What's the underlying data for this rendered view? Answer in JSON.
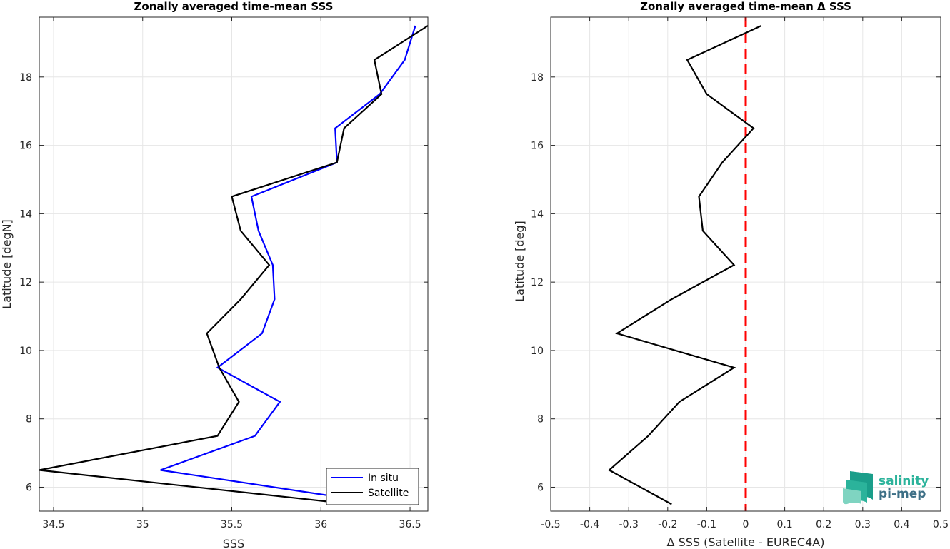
{
  "chart_data": [
    {
      "type": "line",
      "title": "Zonally averaged time-mean SSS",
      "xlabel": "SSS",
      "ylabel": "Latitude [degN]",
      "xlim": [
        34.42,
        36.6
      ],
      "ylim": [
        5.3,
        19.75
      ],
      "xticks": [
        34.5,
        35,
        35.5,
        36,
        36.5
      ],
      "xtick_labels": [
        "34.5",
        "35",
        "35.5",
        "36",
        "36.5"
      ],
      "yticks": [
        6,
        8,
        10,
        12,
        14,
        16,
        18
      ],
      "ytick_labels": [
        "6",
        "8",
        "10",
        "12",
        "14",
        "16",
        "18"
      ],
      "grid": true,
      "legend": "bottom-right",
      "series": [
        {
          "name": "In situ",
          "color": "#0000ff",
          "x": [
            36.37,
            35.1,
            35.63,
            35.77,
            35.42,
            35.67,
            35.74,
            35.73,
            35.65,
            35.61,
            36.09,
            36.08,
            36.33,
            36.47,
            36.53
          ],
          "y": [
            5.5,
            6.5,
            7.5,
            8.5,
            9.5,
            10.5,
            11.5,
            12.5,
            13.5,
            14.5,
            15.5,
            16.5,
            17.5,
            18.5,
            19.5
          ]
        },
        {
          "name": "Satellite",
          "color": "#000000",
          "x": [
            36.18,
            34.42,
            35.42,
            35.54,
            35.43,
            35.36,
            35.55,
            35.71,
            35.55,
            35.5,
            36.09,
            36.13,
            36.34,
            36.3,
            36.6
          ],
          "y": [
            5.5,
            6.5,
            7.5,
            8.5,
            9.5,
            10.5,
            11.5,
            12.5,
            13.5,
            14.5,
            15.5,
            16.5,
            17.5,
            18.5,
            19.5
          ]
        }
      ]
    },
    {
      "type": "line",
      "title": "Zonally averaged time-mean Δ SSS",
      "xlabel": "Δ SSS (Satellite - EUREC4A)",
      "ylabel": "Latitude [deg]",
      "xlim": [
        -0.5,
        0.5
      ],
      "ylim": [
        5.3,
        19.75
      ],
      "xticks": [
        -0.5,
        -0.4,
        -0.3,
        -0.2,
        -0.1,
        0,
        0.1,
        0.2,
        0.3,
        0.4,
        0.5
      ],
      "xtick_labels": [
        "-0.5",
        "-0.4",
        "-0.3",
        "-0.2",
        "-0.1",
        "0",
        "0.1",
        "0.2",
        "0.3",
        "0.4",
        "0.5"
      ],
      "yticks": [
        6,
        8,
        10,
        12,
        14,
        16,
        18
      ],
      "ytick_labels": [
        "6",
        "8",
        "10",
        "12",
        "14",
        "16",
        "18"
      ],
      "grid": true,
      "reference_line": {
        "x": 0,
        "color": "#ff0000",
        "style": "dashed"
      },
      "series": [
        {
          "color": "#000000",
          "x": [
            -0.19,
            -0.35,
            -0.25,
            -0.17,
            -0.03,
            -0.33,
            -0.19,
            -0.03,
            -0.11,
            -0.12,
            -0.06,
            0.02,
            -0.1,
            -0.15,
            0.04
          ],
          "y": [
            5.5,
            6.5,
            7.5,
            8.5,
            9.5,
            10.5,
            11.5,
            12.5,
            13.5,
            14.5,
            15.5,
            16.5,
            17.5,
            18.5,
            19.5
          ]
        }
      ]
    }
  ],
  "logo": {
    "line1": "salinity",
    "line2": "pi-mep",
    "colors": [
      "#1a9e8a",
      "#2bb39b",
      "#7fd4c1",
      "#3d6f86"
    ]
  }
}
